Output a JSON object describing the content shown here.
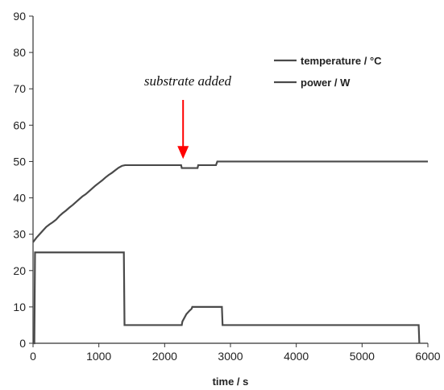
{
  "chart_data": {
    "type": "line",
    "title": "",
    "xlabel": "time / s",
    "ylabel": "",
    "xlim": [
      0,
      6000
    ],
    "ylim": [
      0,
      90
    ],
    "x_ticks": [
      0,
      1000,
      2000,
      3000,
      4000,
      5000,
      6000
    ],
    "y_ticks": [
      0,
      10,
      20,
      30,
      40,
      50,
      60,
      70,
      80,
      90
    ],
    "grid": false,
    "legend_position": "top-right",
    "line_color": "#4a4a4a",
    "series": [
      {
        "name": "temperature / °C",
        "x": [
          0,
          50,
          100,
          150,
          200,
          250,
          300,
          350,
          400,
          450,
          500,
          550,
          600,
          650,
          700,
          750,
          800,
          850,
          900,
          950,
          1000,
          1050,
          1100,
          1150,
          1200,
          1250,
          1300,
          1350,
          1400,
          2250,
          2260,
          2500,
          2510,
          2780,
          2800,
          6000
        ],
        "y": [
          27.8,
          29,
          30,
          31,
          32,
          32.7,
          33.3,
          34,
          35,
          35.8,
          36.5,
          37.3,
          38,
          38.8,
          39.6,
          40.4,
          41,
          41.8,
          42.6,
          43.4,
          44.1,
          44.8,
          45.6,
          46.3,
          46.9,
          47.6,
          48.3,
          48.8,
          49,
          49,
          48.2,
          48.2,
          49,
          49,
          50,
          50
        ]
      },
      {
        "name": "power / W",
        "x": [
          0,
          20,
          30,
          1380,
          1390,
          2260,
          2270,
          2300,
          2330,
          2380,
          2410,
          2420,
          2870,
          2880,
          5860,
          5870
        ],
        "y": [
          0,
          0,
          25,
          25,
          5,
          5,
          6,
          7,
          8,
          9,
          9.5,
          10,
          10,
          5,
          5,
          0
        ]
      }
    ],
    "annotations": [
      {
        "text": "substrate added",
        "x": 2280,
        "y": 56,
        "arrow_color": "#ff0000"
      }
    ]
  }
}
